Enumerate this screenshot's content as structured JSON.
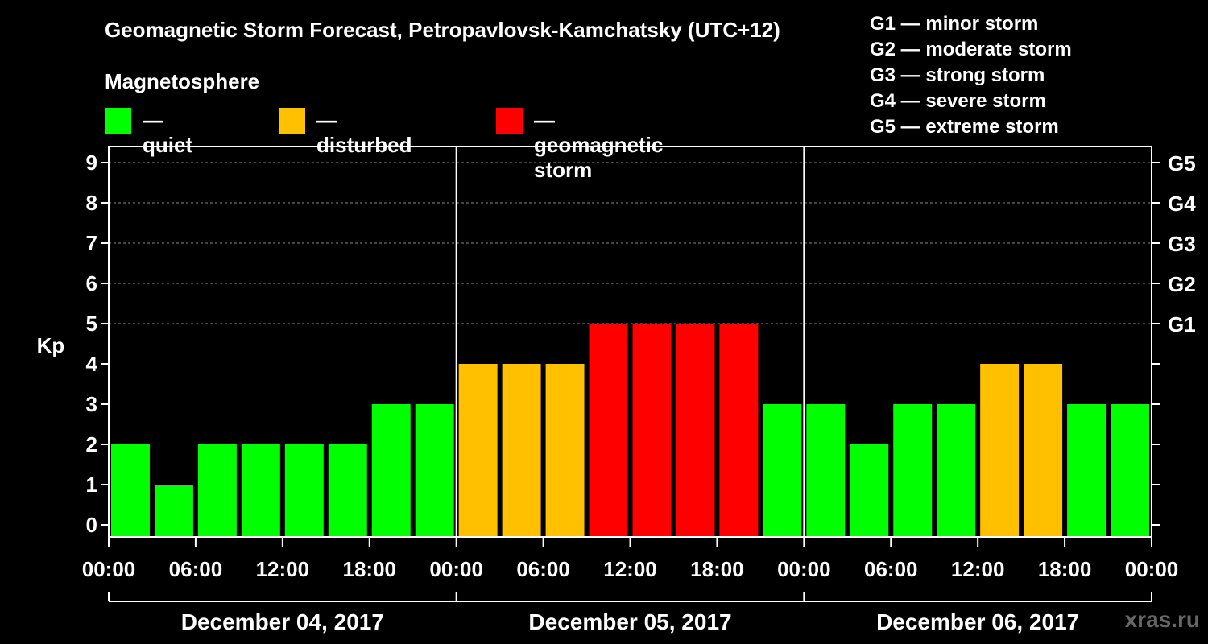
{
  "title": "Geomagnetic Storm Forecast, Petropavlovsk-Kamchatsky (UTC+12)",
  "legend": {
    "heading": "Magnetosphere",
    "items": [
      {
        "label": "— quiet",
        "color": "#00ff00"
      },
      {
        "label": "— disturbed",
        "color": "#ffc000"
      },
      {
        "label": "— geomagnetic storm",
        "color": "#ff0000"
      }
    ]
  },
  "storm_levels": [
    "G1 — minor storm",
    "G2 — moderate storm",
    "G3 — strong storm",
    "G4 — severe storm",
    "G5 — extreme storm"
  ],
  "watermark": "xras.ru",
  "chart_data": {
    "type": "bar",
    "title": "Geomagnetic Storm Forecast, Petropavlovsk-Kamchatsky (UTC+12)",
    "ylabel": "Kp",
    "ylim": [
      0,
      9
    ],
    "yticks": [
      0,
      1,
      2,
      3,
      4,
      5,
      6,
      7,
      8,
      9
    ],
    "right_axis_ticks": [
      {
        "kp": 5,
        "label": "G1"
      },
      {
        "kp": 6,
        "label": "G2"
      },
      {
        "kp": 7,
        "label": "G3"
      },
      {
        "kp": 8,
        "label": "G4"
      },
      {
        "kp": 9,
        "label": "G5"
      }
    ],
    "grid": "horizontal dashed at Kp 5–9",
    "days": [
      "December 04, 2017",
      "December 05, 2017",
      "December 06, 2017"
    ],
    "xtick_labels": [
      "00:00",
      "06:00",
      "12:00",
      "18:00",
      "00:00",
      "06:00",
      "12:00",
      "18:00",
      "00:00",
      "06:00",
      "12:00",
      "18:00",
      "00:00"
    ],
    "bar_interval_hours": 3,
    "values": [
      2,
      1,
      2,
      2,
      2,
      2,
      3,
      3,
      4,
      4,
      4,
      5,
      5,
      5,
      5,
      3,
      3,
      2,
      3,
      3,
      4,
      4,
      3,
      3
    ],
    "color_scale": {
      "quiet": "#00ff00",
      "disturbed": "#ffc000",
      "storm": "#ff0000"
    }
  }
}
